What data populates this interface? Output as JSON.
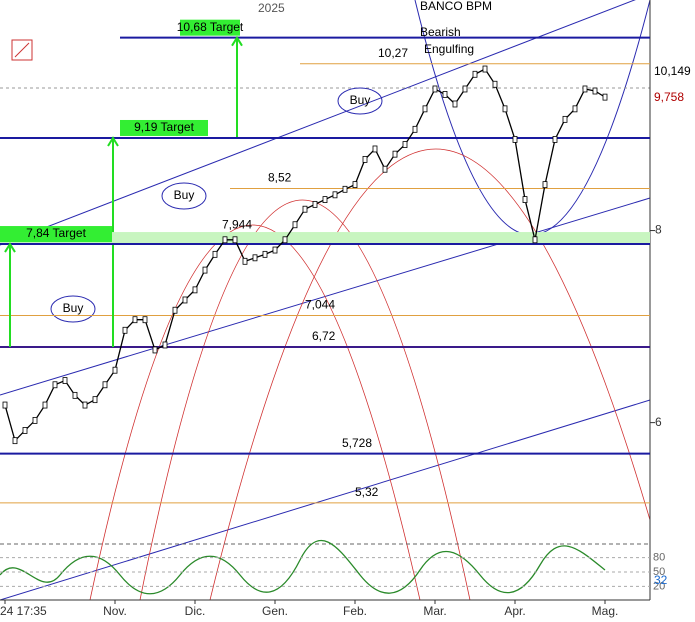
{
  "chart_data": {
    "type": "line",
    "title": "BANCO BPM",
    "year_label": "2025",
    "annotation": "Bearish Engulfing",
    "buy_labels": [
      "Buy",
      "Buy",
      "Buy"
    ],
    "log_scale": true,
    "ylim": [
      4.6,
      11.3
    ],
    "yticks": [
      6,
      8
    ],
    "color": "#000000",
    "categories": [
      "24 17:35",
      null,
      null,
      null,
      null,
      null,
      null,
      null,
      null,
      null,
      null,
      "Nov.",
      null,
      null,
      null,
      null,
      null,
      null,
      null,
      "Dic.",
      null,
      null,
      null,
      null,
      null,
      null,
      null,
      "Gen.",
      null,
      null,
      null,
      null,
      null,
      null,
      null,
      "Feb.",
      null,
      null,
      null,
      null,
      null,
      null,
      null,
      "Mar.",
      null,
      null,
      null,
      null,
      null,
      null,
      null,
      "Apr.",
      null,
      null,
      null,
      null,
      null,
      null,
      null,
      null,
      "Mag."
    ],
    "values": [
      6.16,
      5.84,
      5.93,
      6.02,
      6.16,
      6.35,
      6.39,
      6.25,
      6.16,
      6.21,
      6.35,
      6.49,
      6.89,
      7.0,
      7.0,
      6.69,
      6.74,
      7.1,
      7.21,
      7.32,
      7.54,
      7.72,
      7.89,
      7.89,
      7.64,
      7.68,
      7.72,
      7.77,
      7.89,
      8.07,
      8.26,
      8.32,
      8.38,
      8.44,
      8.51,
      8.57,
      8.9,
      9.04,
      8.77,
      8.97,
      9.1,
      9.31,
      9.6,
      9.89,
      9.81,
      9.67,
      9.89,
      10.11,
      10.19,
      9.96,
      9.6,
      9.17,
      8.38,
      7.89,
      8.57,
      9.17,
      9.45,
      9.6,
      9.89,
      9.86,
      9.77
    ],
    "targets": [
      {
        "value": 10.68,
        "label": "10,68 Target"
      },
      {
        "value": 9.19,
        "label": "9,19 Target"
      },
      {
        "value": 7.84,
        "label": "7,84 Target"
      }
    ],
    "levels": [
      {
        "value": 6.72,
        "label": "6,72",
        "color": "#3a1a8a"
      },
      {
        "value": 5.728,
        "label": "5,728",
        "color": "#1a1aa0"
      }
    ],
    "orange_levels": [
      {
        "value": 10.27,
        "label": "10,27"
      },
      {
        "value": 8.52,
        "label": "8,52"
      },
      {
        "value": 7.944,
        "label": "7,944"
      },
      {
        "value": 7.044,
        "label": "7,044"
      },
      {
        "value": 5.32,
        "label": "5,32"
      }
    ],
    "price_labels": [
      {
        "value": 10.149,
        "label": "10,149",
        "color": "#000000"
      },
      {
        "value": 9.758,
        "label": "9,758",
        "color": "#b00000"
      }
    ],
    "oscillator": {
      "ylim": [
        0,
        100
      ],
      "yticks": [
        80,
        50,
        20
      ],
      "value": 32,
      "color": "#1a6ad0"
    }
  }
}
